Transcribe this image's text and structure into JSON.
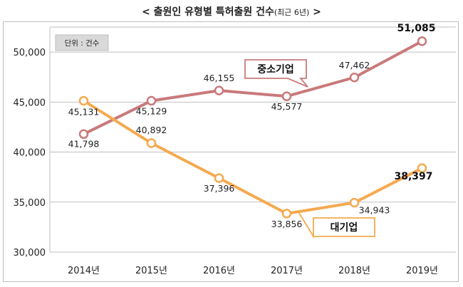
{
  "title": {
    "main": "< 출원인 유형별 특허출원 건수",
    "sub": "(최근 6년)",
    "end": " >"
  },
  "unit_label": "단위 : 건수",
  "chart_data": {
    "type": "line",
    "categories": [
      "2014년",
      "2015년",
      "2016년",
      "2017년",
      "2018년",
      "2019년"
    ],
    "ylim": [
      30000,
      52500
    ],
    "yticks": [
      30000,
      35000,
      40000,
      45000,
      50000
    ],
    "ytick_labels": [
      "30,000",
      "35,000",
      "40,000",
      "45,000",
      "50,000"
    ],
    "grid": true,
    "series": [
      {
        "name": "중소기업",
        "color": "#c9797a",
        "values": [
          41798,
          45129,
          46155,
          45577,
          47462,
          51085
        ],
        "labels": [
          "41,798",
          "45,129",
          "46,155",
          "45,577",
          "47,462",
          "51,085"
        ]
      },
      {
        "name": "대기업",
        "color": "#f5a94f",
        "values": [
          45131,
          40892,
          37396,
          33856,
          34943,
          38397
        ],
        "labels": [
          "45,131",
          "40,892",
          "37,396",
          "33,856",
          "34,943",
          "38,397"
        ]
      }
    ]
  }
}
